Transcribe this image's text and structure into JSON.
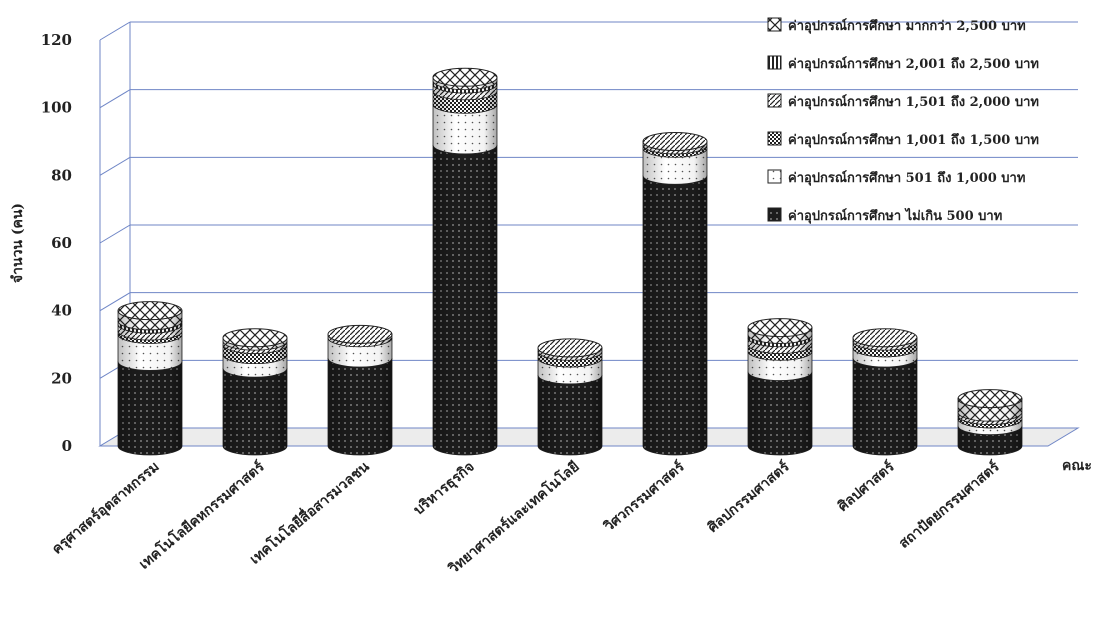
{
  "chart_data": {
    "type": "bar",
    "stacked": true,
    "style": "3d-cylinder",
    "title": "",
    "xlabel": "คณะ",
    "ylabel": "จำนวน (คน)",
    "ylim": [
      0,
      120
    ],
    "yticks": [
      0,
      20,
      40,
      60,
      80,
      100,
      120
    ],
    "grid": true,
    "legend_position": "top-right",
    "categories": [
      "ครุศาสตร์อุตสาหกรรม",
      "เทคโนโลยีคหกรรมศาสตร์",
      "เทคโนโลยีสื่อสารมวลชน",
      "บริหารธุรกิจ",
      "วิทยาศาสตร์และเทคโนโลยี",
      "วิศวกรรมศาสตร์",
      "ศิลปกรรมศาสตร์",
      "ศิลปศาสตร์",
      "สถาปัตยกรรมศาสตร์"
    ],
    "series": [
      {
        "name": "ค่าอุปกรณ์การศึกษา ไม่เกิน 500 บาท",
        "values": [
          25,
          23,
          26,
          89,
          21,
          80,
          22,
          26,
          6
        ],
        "pattern": "dots-dark",
        "color": "#1a1a1a"
      },
      {
        "name": "ค่าอุปกรณ์การศึกษา 501 ถึง 1,000 บาท",
        "values": [
          8,
          4,
          6,
          12,
          5,
          8,
          6,
          3,
          2
        ],
        "pattern": "dots-light",
        "color": "#ffffff"
      },
      {
        "name": "ค่าอุปกรณ์การศึกษา 1,001 ถึง 1,500 บาท",
        "values": [
          1,
          3,
          0,
          4,
          2,
          1,
          2,
          2,
          1
        ],
        "pattern": "checker",
        "color": "#444444"
      },
      {
        "name": "ค่าอุปกรณ์การศึกษา 1,501 ถึง 2,000 บาท",
        "values": [
          2,
          1,
          1,
          2,
          1,
          1,
          2,
          1,
          1
        ],
        "pattern": "diagonal",
        "color": "#888888"
      },
      {
        "name": "ค่าอุปกรณ์การศึกษา 2,001 ถึง 2,500 บาท",
        "values": [
          1,
          0,
          0,
          1,
          0,
          0,
          1,
          0,
          0
        ],
        "pattern": "vertical",
        "color": "#555555"
      },
      {
        "name": "ค่าอุปกรณ์การศึกษา มากกว่า 2,500 บาท",
        "values": [
          3,
          1,
          0,
          1,
          0,
          0,
          2,
          0,
          4
        ],
        "pattern": "crosshatch",
        "color": "#666666"
      }
    ]
  }
}
